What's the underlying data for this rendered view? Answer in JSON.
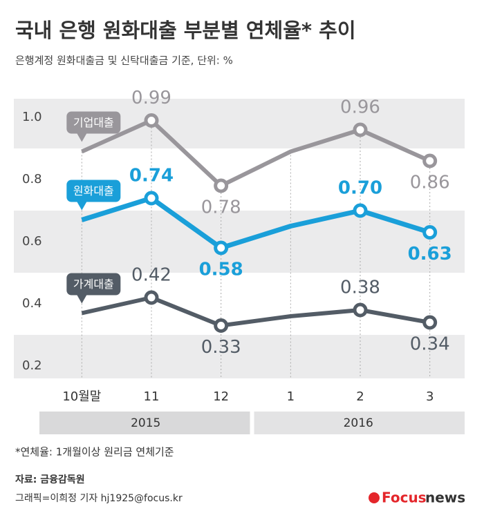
{
  "title": "국내 은행 원화대출 부분별 연체율* 추이",
  "subtitle": "은행계정 원화대출금 및 신탁대출금 기준, 단위: %",
  "footnote": "*연체율: 1개월이상 원리금 연체기준",
  "source": "자료: 금융감독원",
  "credit": "그래픽=이희정 기자 hj1925@focus.kr",
  "brand": {
    "focus": "Focus",
    "news": "news"
  },
  "chart_data": {
    "type": "line",
    "categories": [
      "10월말",
      "11",
      "12",
      "1",
      "2",
      "3"
    ],
    "groups": [
      "2015",
      "2016"
    ],
    "ylim": [
      0.16,
      1.06
    ],
    "yticks": [
      {
        "value": 1,
        "label": "1.0"
      },
      0.8,
      0.6,
      0.4,
      0.2
    ],
    "grid": true,
    "series": [
      {
        "name": "기업대출",
        "color": "#99969b",
        "values": [
          0.89,
          0.99,
          0.78,
          0.89,
          0.96,
          0.86
        ],
        "value_labels": [
          null,
          "0.99",
          "0.78",
          null,
          "0.96",
          "0.86"
        ]
      },
      {
        "name": "원화대출",
        "color": "#1a9fd9",
        "values": [
          0.67,
          0.74,
          0.58,
          0.65,
          0.7,
          0.63
        ],
        "value_labels": [
          null,
          "0.74",
          "0.58",
          null,
          "0.70",
          "0.63"
        ]
      },
      {
        "name": "가계대출",
        "color": "#535c66",
        "values": [
          0.37,
          0.42,
          0.33,
          0.36,
          0.38,
          0.34
        ],
        "value_labels": [
          null,
          "0.42",
          "0.33",
          null,
          "0.38",
          "0.34"
        ]
      }
    ]
  }
}
